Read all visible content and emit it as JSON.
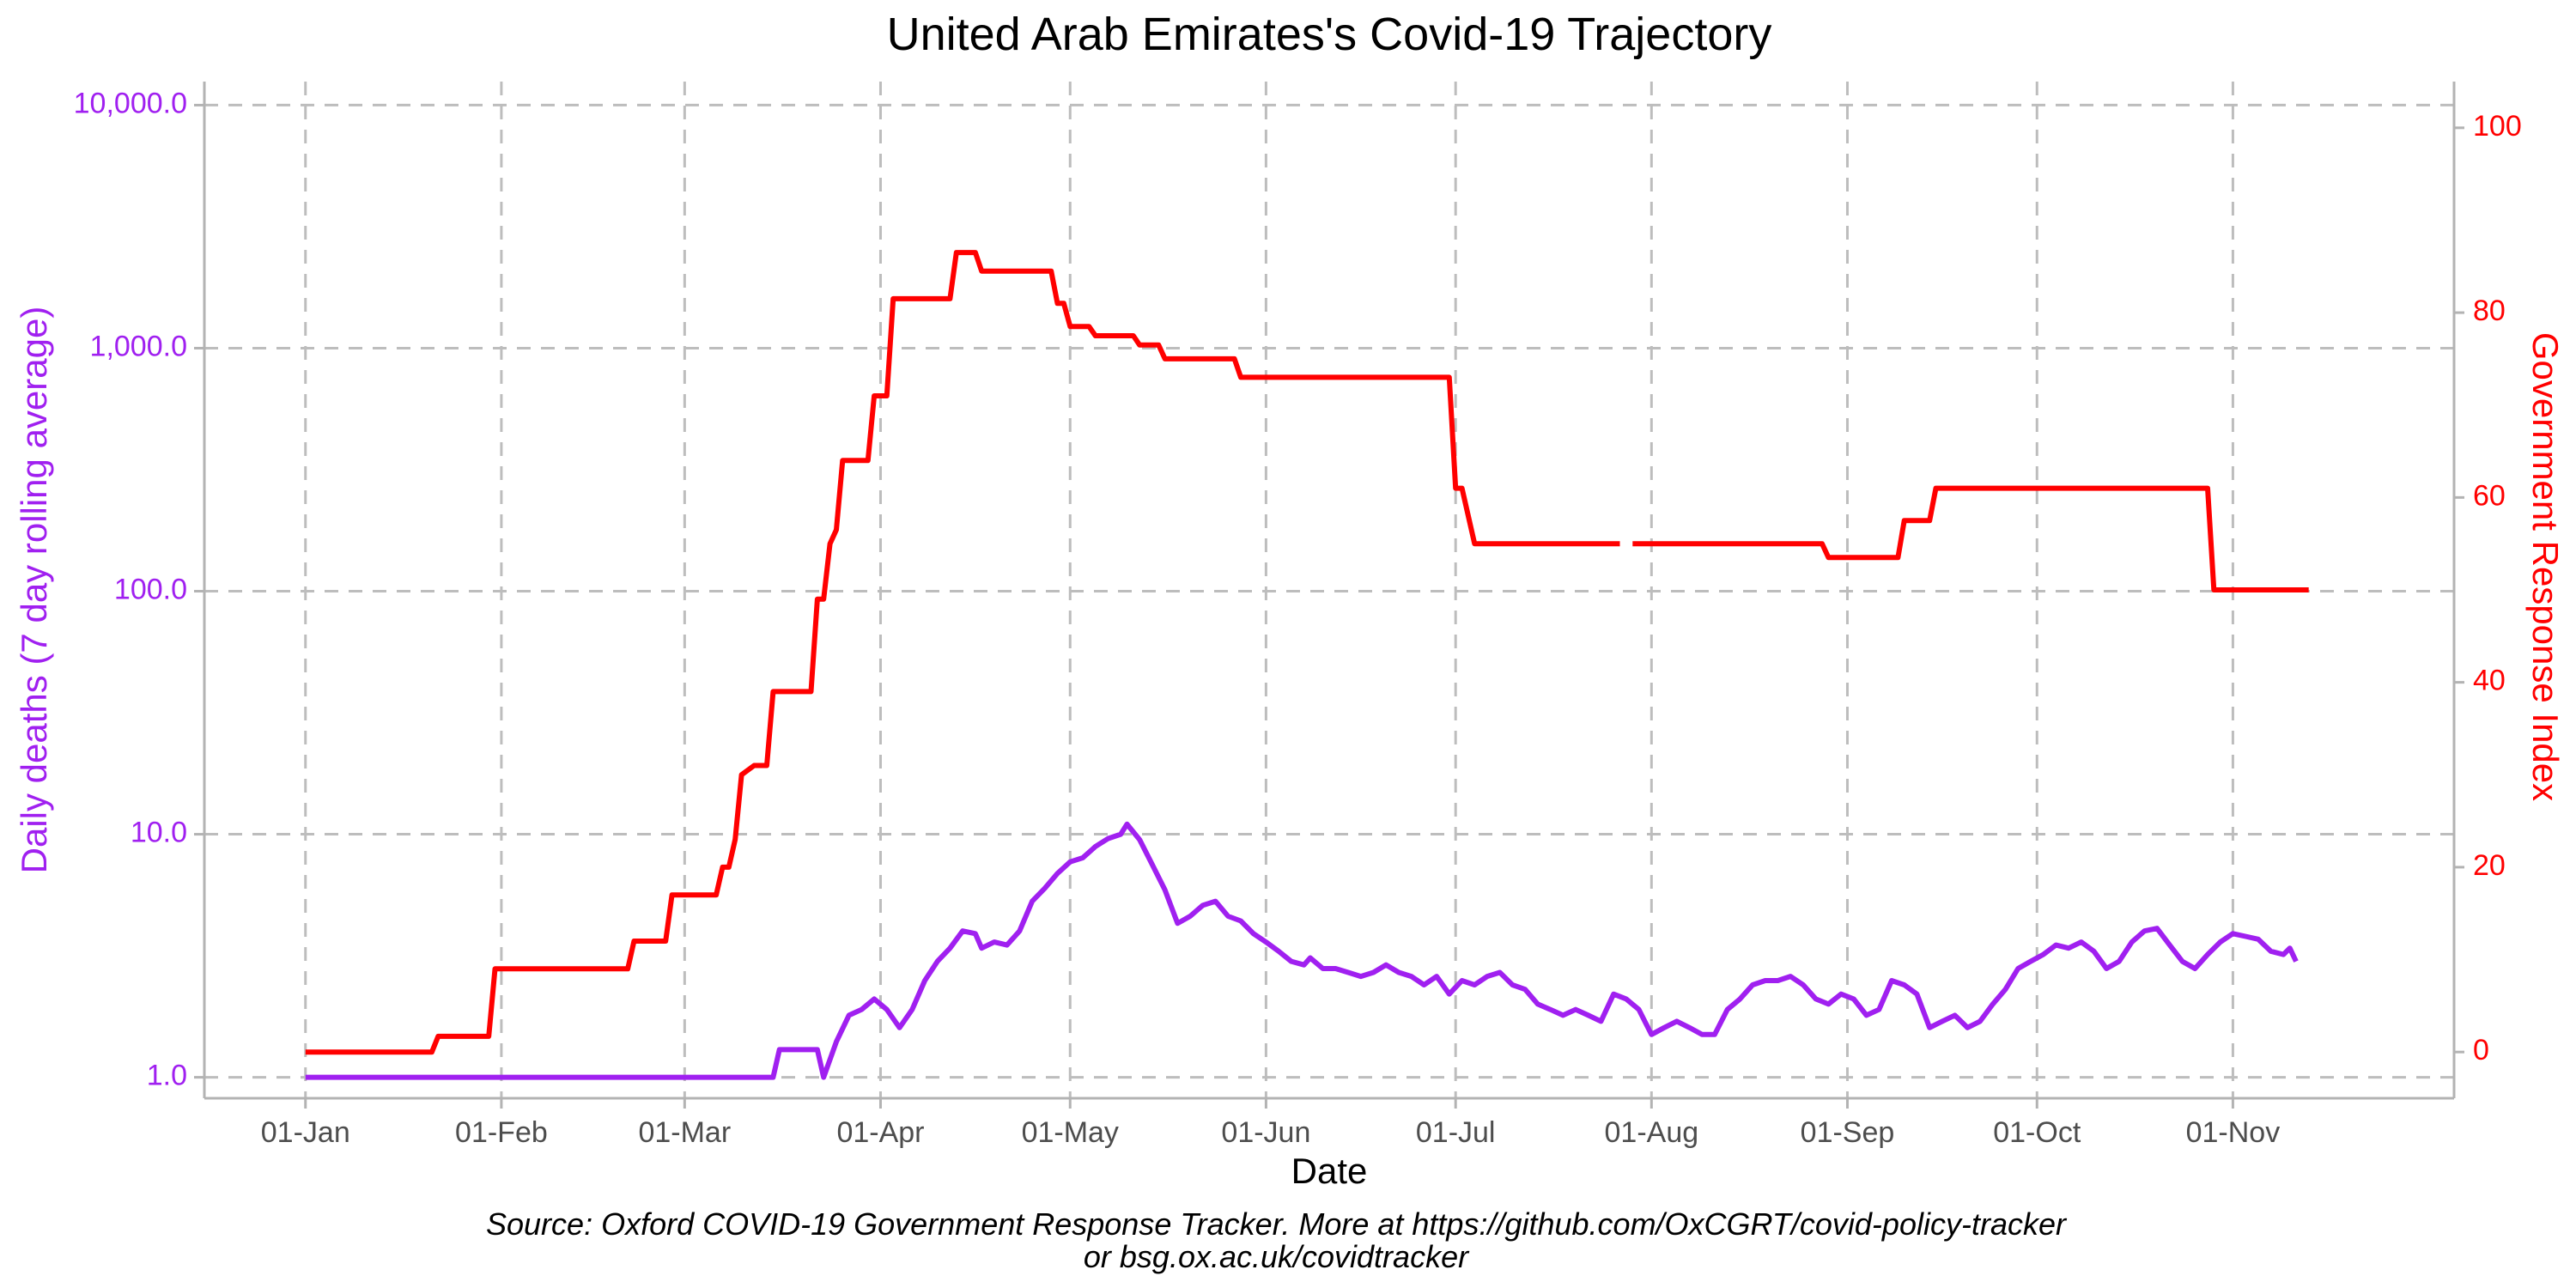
{
  "chart_data": {
    "type": "line",
    "title": "United Arab Emirates's Covid-19 Trajectory",
    "xlabel": "Date",
    "ylabel_left": "Daily deaths (7 day rolling average)",
    "ylabel_right": "Government Response Index",
    "caption_lines": [
      "Source: Oxford COVID-19 Government Response Tracker. More at https://github.com/OxCGRT/covid-policy-tracker",
      "or bsg.ox.ac.uk/covidtracker"
    ],
    "x_ticks": [
      {
        "date": "2020-01-01",
        "label": "01-Jan"
      },
      {
        "date": "2020-02-01",
        "label": "01-Feb"
      },
      {
        "date": "2020-03-01",
        "label": "01-Mar"
      },
      {
        "date": "2020-04-01",
        "label": "01-Apr"
      },
      {
        "date": "2020-05-01",
        "label": "01-May"
      },
      {
        "date": "2020-06-01",
        "label": "01-Jun"
      },
      {
        "date": "2020-07-01",
        "label": "01-Jul"
      },
      {
        "date": "2020-08-01",
        "label": "01-Aug"
      },
      {
        "date": "2020-09-01",
        "label": "01-Sep"
      },
      {
        "date": "2020-10-01",
        "label": "01-Oct"
      },
      {
        "date": "2020-11-01",
        "label": "01-Nov"
      }
    ],
    "x_range": [
      "2019-12-16",
      "2020-12-06"
    ],
    "y_left": {
      "scale": "log10",
      "range": [
        0.82,
        12500
      ],
      "ticks": [
        1,
        10,
        100,
        1000,
        10000
      ],
      "tick_labels": [
        "1.0",
        "10.0",
        "100.0",
        "1,000.0",
        "10,000.0"
      ],
      "color": "#a020f0"
    },
    "y_right": {
      "scale": "linear",
      "range": [
        -5,
        105
      ],
      "ticks": [
        0,
        20,
        40,
        60,
        80,
        100
      ],
      "tick_labels": [
        "0",
        "20",
        "40",
        "60",
        "80",
        "100"
      ],
      "color": "#ff0000"
    },
    "grid": true,
    "series": [
      {
        "name": "Daily deaths (7 day rolling average)",
        "axis": "left",
        "color": "#a020f0",
        "points": [
          [
            "2020-01-01",
            1
          ],
          [
            "2020-03-15",
            1
          ],
          [
            "2020-03-16",
            1.3
          ],
          [
            "2020-03-22",
            1.3
          ],
          [
            "2020-03-23",
            1.0
          ],
          [
            "2020-03-25",
            1.4
          ],
          [
            "2020-03-27",
            1.8
          ],
          [
            "2020-03-29",
            1.9
          ],
          [
            "2020-03-31",
            2.1
          ],
          [
            "2020-04-02",
            1.9
          ],
          [
            "2020-04-04",
            1.6
          ],
          [
            "2020-04-06",
            1.9
          ],
          [
            "2020-04-08",
            2.5
          ],
          [
            "2020-04-10",
            3.0
          ],
          [
            "2020-04-12",
            3.4
          ],
          [
            "2020-04-14",
            4.0
          ],
          [
            "2020-04-16",
            3.9
          ],
          [
            "2020-04-17",
            3.4
          ],
          [
            "2020-04-19",
            3.6
          ],
          [
            "2020-04-21",
            3.5
          ],
          [
            "2020-04-23",
            4.0
          ],
          [
            "2020-04-25",
            5.3
          ],
          [
            "2020-04-27",
            6.0
          ],
          [
            "2020-04-29",
            6.9
          ],
          [
            "2020-05-01",
            7.7
          ],
          [
            "2020-05-03",
            8.0
          ],
          [
            "2020-05-05",
            8.9
          ],
          [
            "2020-05-07",
            9.6
          ],
          [
            "2020-05-09",
            10.0
          ],
          [
            "2020-05-10",
            11.0
          ],
          [
            "2020-05-12",
            9.5
          ],
          [
            "2020-05-14",
            7.5
          ],
          [
            "2020-05-16",
            5.9
          ],
          [
            "2020-05-18",
            4.3
          ],
          [
            "2020-05-20",
            4.6
          ],
          [
            "2020-05-22",
            5.1
          ],
          [
            "2020-05-24",
            5.3
          ],
          [
            "2020-05-26",
            4.6
          ],
          [
            "2020-05-28",
            4.4
          ],
          [
            "2020-05-30",
            3.9
          ],
          [
            "2020-06-01",
            3.6
          ],
          [
            "2020-06-03",
            3.3
          ],
          [
            "2020-06-05",
            3.0
          ],
          [
            "2020-06-07",
            2.9
          ],
          [
            "2020-06-08",
            3.1
          ],
          [
            "2020-06-10",
            2.8
          ],
          [
            "2020-06-12",
            2.8
          ],
          [
            "2020-06-14",
            2.7
          ],
          [
            "2020-06-16",
            2.6
          ],
          [
            "2020-06-18",
            2.7
          ],
          [
            "2020-06-20",
            2.9
          ],
          [
            "2020-06-22",
            2.7
          ],
          [
            "2020-06-24",
            2.6
          ],
          [
            "2020-06-26",
            2.4
          ],
          [
            "2020-06-28",
            2.6
          ],
          [
            "2020-06-30",
            2.2
          ],
          [
            "2020-07-02",
            2.5
          ],
          [
            "2020-07-04",
            2.4
          ],
          [
            "2020-07-06",
            2.6
          ],
          [
            "2020-07-08",
            2.7
          ],
          [
            "2020-07-10",
            2.4
          ],
          [
            "2020-07-12",
            2.3
          ],
          [
            "2020-07-14",
            2.0
          ],
          [
            "2020-07-16",
            1.9
          ],
          [
            "2020-07-18",
            1.8
          ],
          [
            "2020-07-20",
            1.9
          ],
          [
            "2020-07-22",
            1.8
          ],
          [
            "2020-07-24",
            1.7
          ],
          [
            "2020-07-26",
            2.2
          ],
          [
            "2020-07-28",
            2.1
          ],
          [
            "2020-07-30",
            1.9
          ],
          [
            "2020-08-01",
            1.5
          ],
          [
            "2020-08-03",
            1.6
          ],
          [
            "2020-08-05",
            1.7
          ],
          [
            "2020-08-07",
            1.6
          ],
          [
            "2020-08-09",
            1.5
          ],
          [
            "2020-08-11",
            1.5
          ],
          [
            "2020-08-13",
            1.9
          ],
          [
            "2020-08-15",
            2.1
          ],
          [
            "2020-08-17",
            2.4
          ],
          [
            "2020-08-19",
            2.5
          ],
          [
            "2020-08-21",
            2.5
          ],
          [
            "2020-08-23",
            2.6
          ],
          [
            "2020-08-25",
            2.4
          ],
          [
            "2020-08-27",
            2.1
          ],
          [
            "2020-08-29",
            2.0
          ],
          [
            "2020-08-31",
            2.2
          ],
          [
            "2020-09-02",
            2.1
          ],
          [
            "2020-09-04",
            1.8
          ],
          [
            "2020-09-06",
            1.9
          ],
          [
            "2020-09-08",
            2.5
          ],
          [
            "2020-09-10",
            2.4
          ],
          [
            "2020-09-12",
            2.2
          ],
          [
            "2020-09-14",
            1.6
          ],
          [
            "2020-09-16",
            1.7
          ],
          [
            "2020-09-18",
            1.8
          ],
          [
            "2020-09-20",
            1.6
          ],
          [
            "2020-09-22",
            1.7
          ],
          [
            "2020-09-24",
            2.0
          ],
          [
            "2020-09-26",
            2.3
          ],
          [
            "2020-09-28",
            2.8
          ],
          [
            "2020-09-30",
            3.0
          ],
          [
            "2020-10-02",
            3.2
          ],
          [
            "2020-10-04",
            3.5
          ],
          [
            "2020-10-06",
            3.4
          ],
          [
            "2020-10-08",
            3.6
          ],
          [
            "2020-10-10",
            3.3
          ],
          [
            "2020-10-12",
            2.8
          ],
          [
            "2020-10-14",
            3.0
          ],
          [
            "2020-10-16",
            3.6
          ],
          [
            "2020-10-18",
            4.0
          ],
          [
            "2020-10-20",
            4.1
          ],
          [
            "2020-10-22",
            3.5
          ],
          [
            "2020-10-24",
            3.0
          ],
          [
            "2020-10-26",
            2.8
          ],
          [
            "2020-10-28",
            3.2
          ],
          [
            "2020-10-30",
            3.6
          ],
          [
            "2020-11-01",
            3.9
          ],
          [
            "2020-11-03",
            3.8
          ],
          [
            "2020-11-05",
            3.7
          ],
          [
            "2020-11-07",
            3.3
          ],
          [
            "2020-11-09",
            3.2
          ],
          [
            "2020-11-10",
            3.4
          ],
          [
            "2020-11-11",
            3.0
          ]
        ]
      },
      {
        "name": "Government Response Index",
        "axis": "right",
        "color": "#ff0000",
        "segments": [
          [
            [
              "2020-01-01",
              0
            ],
            [
              "2020-01-21",
              0
            ],
            [
              "2020-01-22",
              1.7
            ],
            [
              "2020-01-30",
              1.7
            ],
            [
              "2020-01-31",
              9
            ],
            [
              "2020-02-21",
              9
            ],
            [
              "2020-02-22",
              12
            ],
            [
              "2020-02-27",
              12
            ],
            [
              "2020-02-28",
              17
            ],
            [
              "2020-03-06",
              17
            ],
            [
              "2020-03-07",
              20
            ],
            [
              "2020-03-08",
              20
            ],
            [
              "2020-03-09",
              23
            ],
            [
              "2020-03-10",
              30
            ],
            [
              "2020-03-12",
              31
            ],
            [
              "2020-03-14",
              31
            ],
            [
              "2020-03-15",
              39
            ],
            [
              "2020-03-21",
              39
            ],
            [
              "2020-03-22",
              49
            ],
            [
              "2020-03-23",
              49
            ],
            [
              "2020-03-24",
              55
            ],
            [
              "2020-03-25",
              56.5
            ],
            [
              "2020-03-26",
              64
            ],
            [
              "2020-03-30",
              64
            ],
            [
              "2020-03-31",
              71
            ],
            [
              "2020-04-02",
              71
            ],
            [
              "2020-04-03",
              81.5
            ],
            [
              "2020-04-12",
              81.5
            ],
            [
              "2020-04-13",
              86.5
            ],
            [
              "2020-04-16",
              86.5
            ],
            [
              "2020-04-17",
              84.5
            ],
            [
              "2020-04-28",
              84.5
            ],
            [
              "2020-04-29",
              81
            ],
            [
              "2020-04-30",
              81
            ],
            [
              "2020-05-01",
              78.5
            ],
            [
              "2020-05-04",
              78.5
            ],
            [
              "2020-05-05",
              77.5
            ],
            [
              "2020-05-11",
              77.5
            ],
            [
              "2020-05-12",
              76.5
            ],
            [
              "2020-05-15",
              76.5
            ],
            [
              "2020-05-16",
              75
            ],
            [
              "2020-05-27",
              75
            ],
            [
              "2020-05-28",
              73
            ],
            [
              "2020-06-30",
              73
            ],
            [
              "2020-07-01",
              61
            ],
            [
              "2020-07-02",
              61
            ],
            [
              "2020-07-04",
              55
            ],
            [
              "2020-07-27",
              55
            ]
          ],
          [
            [
              "2020-07-29",
              55
            ],
            [
              "2020-08-28",
              55
            ],
            [
              "2020-08-29",
              53.5
            ],
            [
              "2020-09-09",
              53.5
            ],
            [
              "2020-09-10",
              57.5
            ],
            [
              "2020-09-14",
              57.5
            ],
            [
              "2020-09-15",
              61
            ],
            [
              "2020-10-28",
              61
            ],
            [
              "2020-10-29",
              50
            ],
            [
              "2020-11-13",
              50
            ]
          ]
        ]
      }
    ]
  }
}
